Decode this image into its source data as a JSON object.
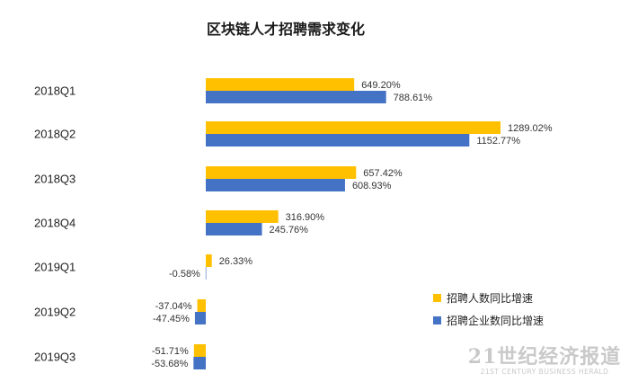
{
  "chart_data": {
    "type": "bar",
    "orientation": "horizontal",
    "title": "区块链人才招聘需求变化",
    "categories": [
      "2018Q1",
      "2018Q2",
      "2018Q3",
      "2018Q4",
      "2019Q1",
      "2019Q2",
      "2019Q3"
    ],
    "series": [
      {
        "name": "招聘人数同比增速",
        "color": "#ffc000",
        "values": [
          649.2,
          1289.02,
          657.42,
          316.9,
          26.33,
          -37.04,
          -51.71
        ],
        "labels": [
          "649.20%",
          "1289.02%",
          "657.42%",
          "316.90%",
          "26.33%",
          "-37.04%",
          "-51.71%"
        ]
      },
      {
        "name": "招聘企业数同比增速",
        "color": "#4472c4",
        "values": [
          788.61,
          1152.77,
          608.93,
          245.76,
          -0.58,
          -47.45,
          -53.68
        ],
        "labels": [
          "788.61%",
          "1152.77%",
          "608.93%",
          "245.76%",
          "-0.58%",
          "-47.45%",
          "-53.68%"
        ]
      }
    ],
    "unit": "%",
    "xlim": [
      -60,
      1300
    ],
    "grid": false,
    "legend_position": "bottom-right"
  },
  "watermark": {
    "line1": "21世纪经济报道",
    "line2": "21ST CENTURY BUSINESS HERALD"
  }
}
